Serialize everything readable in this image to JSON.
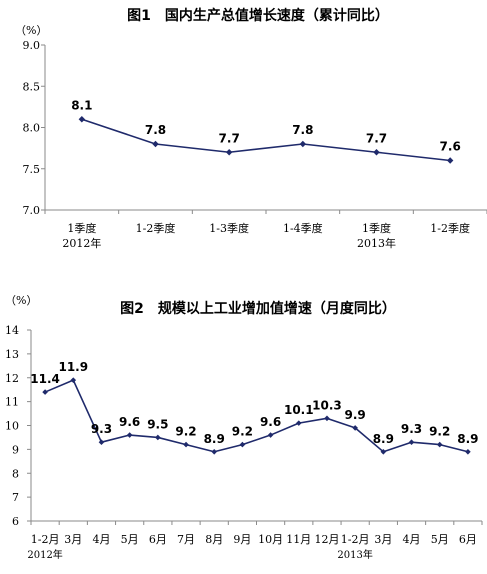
{
  "chart_data": [
    {
      "type": "line",
      "title": "图1　国内生产总值增长速度（累计同比）",
      "ylabel": "（%）",
      "categories": [
        "1季度",
        "1-2季度",
        "1-3季度",
        "1-4季度",
        "1季度",
        "1-2季度"
      ],
      "year_labels": [
        {
          "index": 0,
          "text": "2012年"
        },
        {
          "index": 4,
          "text": "2013年"
        }
      ],
      "values": [
        8.1,
        7.8,
        7.7,
        7.8,
        7.7,
        7.6
      ],
      "data_labels": [
        "8.1",
        "7.8",
        "7.7",
        "7.8",
        "7.7",
        "7.6"
      ],
      "ylim": [
        7.0,
        9.0
      ],
      "yticks": [
        7.0,
        7.5,
        8.0,
        8.5,
        9.0
      ],
      "ytick_labels": [
        "7.0",
        "7.5",
        "8.0",
        "8.5",
        "9.0"
      ],
      "line_color": "#1f2a6b",
      "grid": false,
      "legend": "none"
    },
    {
      "type": "line",
      "title": "图2　规模以上工业增加值增速（月度同比）",
      "ylabel": "（%）",
      "categories": [
        "1-2月",
        "3月",
        "4月",
        "5月",
        "6月",
        "7月",
        "8月",
        "9月",
        "10月",
        "11月",
        "12月",
        "1-2月",
        "3月",
        "4月",
        "5月",
        "6月"
      ],
      "year_labels": [
        {
          "index": 0,
          "text": "2012年"
        },
        {
          "index": 11,
          "text": "2013年"
        }
      ],
      "values": [
        11.4,
        11.9,
        9.3,
        9.6,
        9.5,
        9.2,
        8.9,
        9.2,
        9.6,
        10.1,
        10.3,
        9.9,
        8.9,
        9.3,
        9.2,
        8.9
      ],
      "data_labels": [
        "11.4",
        "11.9",
        "9.3",
        "9.6",
        "9.5",
        "9.2",
        "8.9",
        "9.2",
        "9.6",
        "10.1",
        "10.3",
        "9.9",
        "8.9",
        "9.3",
        "9.2",
        "8.9"
      ],
      "ylim": [
        6,
        14
      ],
      "yticks": [
        6,
        7,
        8,
        9,
        10,
        11,
        12,
        13,
        14
      ],
      "ytick_labels": [
        "6",
        "7",
        "8",
        "9",
        "10",
        "11",
        "12",
        "13",
        "14"
      ],
      "line_color": "#1f2a6b",
      "grid": false,
      "legend": "none"
    }
  ]
}
